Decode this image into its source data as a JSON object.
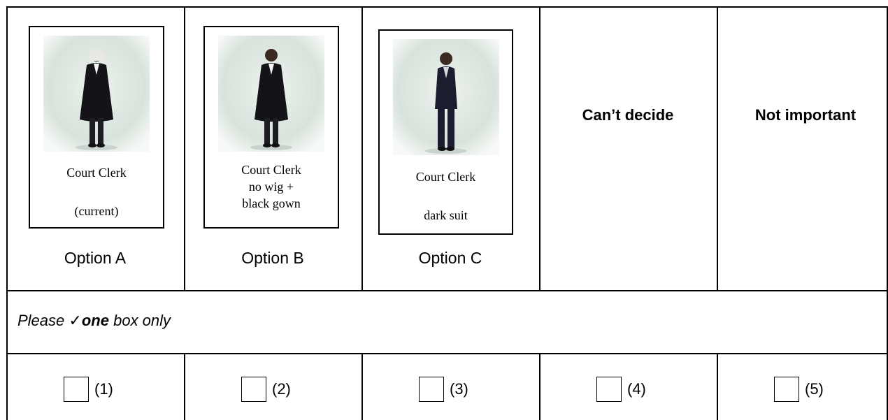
{
  "options": [
    {
      "caption": [
        "Court Clerk",
        "(current)"
      ],
      "label": "Option A"
    },
    {
      "caption": [
        "Court Clerk",
        "no wig +",
        "black gown"
      ],
      "label": "Option B"
    },
    {
      "caption": [
        "Court Clerk",
        "dark suit"
      ],
      "label": "Option C"
    }
  ],
  "other_options": [
    "Can’t decide",
    "Not important"
  ],
  "instruction": {
    "prefix": "Please",
    "check": "✓",
    "emphasis": "one",
    "suffix": "box only"
  },
  "codes": [
    "(1)",
    "(2)",
    "(3)",
    "(4)",
    "(5)"
  ]
}
